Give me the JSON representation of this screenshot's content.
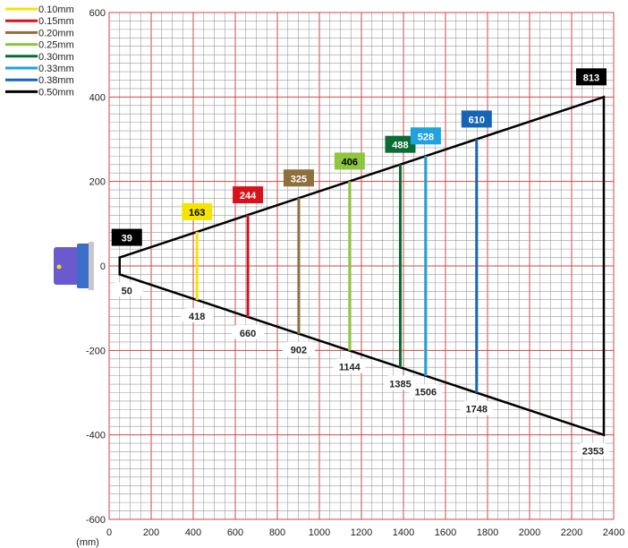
{
  "chart_data": {
    "type": "line",
    "xlim": [
      0,
      2400
    ],
    "ylim": [
      -600,
      600
    ],
    "x_unit_label": "(mm)",
    "x_ticks": [
      0,
      200,
      400,
      600,
      800,
      1000,
      1200,
      1400,
      1600,
      1800,
      2000,
      2200,
      2400
    ],
    "y_ticks": [
      600,
      400,
      200,
      0,
      -200,
      -400,
      -600
    ],
    "grid": true,
    "legend_position": "top-left",
    "beam": {
      "color": "#000000",
      "x": [
        50,
        2353
      ],
      "half_width": [
        20,
        400
      ]
    },
    "series": [
      {
        "name": "0.10mm",
        "color": "#f5e400",
        "x": 418,
        "width": 163,
        "dist_label": "418",
        "width_label": "163"
      },
      {
        "name": "0.15mm",
        "color": "#d8121c",
        "x": 660,
        "width": 244,
        "dist_label": "660",
        "width_label": "244"
      },
      {
        "name": "0.20mm",
        "color": "#8e6f3e",
        "x": 902,
        "width": 325,
        "dist_label": "902",
        "width_label": "325"
      },
      {
        "name": "0.25mm",
        "color": "#8dc63f",
        "x": 1144,
        "width": 406,
        "dist_label": "1144",
        "width_label": "406"
      },
      {
        "name": "0.30mm",
        "color": "#0a6b34",
        "x": 1385,
        "width": 488,
        "dist_label": "1385",
        "width_label": "488"
      },
      {
        "name": "0.33mm",
        "color": "#1fa2e0",
        "x": 1506,
        "width": 528,
        "dist_label": "1506",
        "width_label": "528"
      },
      {
        "name": "0.38mm",
        "color": "#1565b5",
        "x": 1748,
        "width": 610,
        "dist_label": "1748",
        "width_label": "610"
      },
      {
        "name": "0.50mm",
        "color": "#000000",
        "x": 50,
        "width": 39,
        "dist_label": "50",
        "width_label": "39"
      },
      {
        "name": "",
        "color": "#000000",
        "x": 2353,
        "width": 813,
        "dist_label": "2353",
        "width_label": "813"
      }
    ]
  }
}
